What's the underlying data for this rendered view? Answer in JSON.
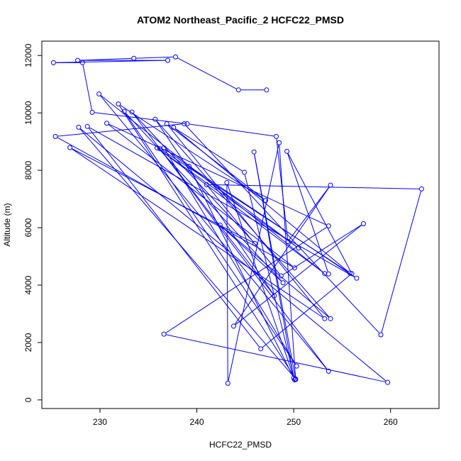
{
  "chart_data": {
    "type": "line",
    "title": "ATOM2 Northeast_Pacific_2 HCFC22_PMSD",
    "xlabel": "HCFC22_PMSD",
    "ylabel": "Altitude (m)",
    "xlim": [
      224,
      265
    ],
    "ylim": [
      -300,
      12500
    ],
    "xticks": [
      230,
      240,
      250,
      260
    ],
    "yticks": [
      0,
      2000,
      4000,
      6000,
      8000,
      10000,
      12000
    ],
    "grid": false,
    "series": [
      {
        "color": "#0000ff",
        "points": [
          [
            247.2,
            10800
          ],
          [
            244.3,
            10800
          ],
          [
            237.8,
            11950
          ],
          [
            233.5,
            11900
          ],
          [
            227.7,
            11830
          ],
          [
            237.0,
            11830
          ],
          [
            225.2,
            11750
          ],
          [
            228.2,
            11750
          ],
          [
            229.2,
            10020
          ],
          [
            239.0,
            9620
          ],
          [
            248.2,
            9180
          ],
          [
            249.4,
            5520
          ],
          [
            253.8,
            7480
          ],
          [
            243.8,
            2570
          ],
          [
            257.2,
            6140
          ],
          [
            248.7,
            4320
          ],
          [
            241.0,
            7500
          ],
          [
            263.2,
            7350
          ],
          [
            259.0,
            2270
          ],
          [
            238.7,
            9620
          ],
          [
            225.4,
            9180
          ],
          [
            250.1,
            4600
          ],
          [
            230.7,
            9640
          ],
          [
            253.6,
            6060
          ],
          [
            236.6,
            2290
          ],
          [
            259.7,
            610
          ],
          [
            227.8,
            9500
          ],
          [
            250.2,
            730
          ],
          [
            231.9,
            10310
          ],
          [
            247.1,
            6950
          ],
          [
            236.9,
            9620
          ],
          [
            253.2,
            2830
          ],
          [
            226.9,
            8790
          ],
          [
            246.0,
            5450
          ],
          [
            233.3,
            10030
          ],
          [
            253.6,
            1000
          ],
          [
            229.9,
            10660
          ],
          [
            253.2,
            4400
          ],
          [
            235.9,
            8780
          ],
          [
            250.5,
            5290
          ],
          [
            236.6,
            8780
          ],
          [
            250.3,
            1180
          ],
          [
            232.5,
            10050
          ],
          [
            248.9,
            4080
          ],
          [
            242.4,
            6090
          ],
          [
            253.8,
            2830
          ],
          [
            235.7,
            9780
          ],
          [
            248.0,
            3630
          ],
          [
            236.2,
            8750
          ],
          [
            255.8,
            4420
          ],
          [
            237.6,
            9490
          ],
          [
            244.9,
            7930
          ],
          [
            250.1,
            700
          ],
          [
            243.1,
            7570
          ],
          [
            243.2,
            580
          ],
          [
            248.5,
            8960
          ],
          [
            250.2,
            710
          ],
          [
            245.9,
            8640
          ],
          [
            250.0,
            760
          ],
          [
            239.2,
            8140
          ],
          [
            256.5,
            4240
          ],
          [
            228.7,
            9530
          ],
          [
            246.6,
            1780
          ],
          [
            256.0,
            4400
          ],
          [
            249.3,
            8660
          ],
          [
            253.6,
            4390
          ]
        ]
      }
    ]
  }
}
